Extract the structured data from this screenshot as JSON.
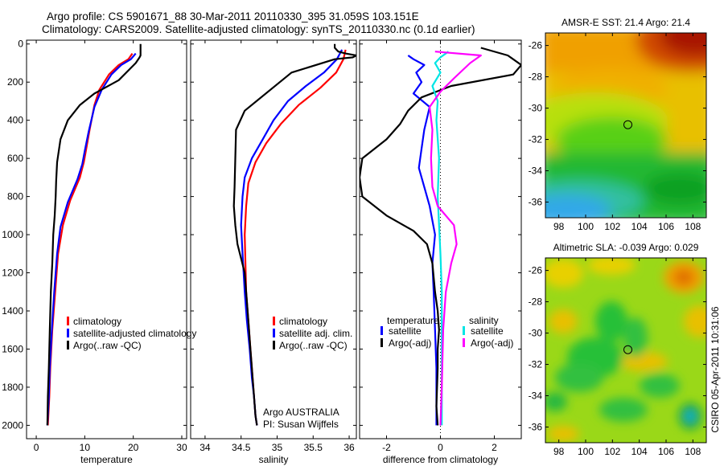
{
  "figure": {
    "title_line1": "Argo profile: CS 5901671_88 30-Mar-2011 20110330_395 31.059S 103.151E",
    "title_line2": "Climatology: CARS2009. Satellite-adjusted climatology: synTS_20110330.nc (0.1d earlier)",
    "credit": "CSIRO 05-Apr-2011 10:31:06"
  },
  "colors": {
    "climatology": "#ff0000",
    "satellite": "#0000ff",
    "argo": "#000000",
    "sal_satellite": "#00e5e5",
    "sal_argo": "#ff00ff"
  },
  "chart_data": [
    {
      "type": "line",
      "id": "temperature",
      "xlabel": "temperature",
      "ylabel": "",
      "xlim": [
        -2,
        31
      ],
      "ylim": [
        2070,
        -20
      ],
      "x_ticks": [
        0,
        10,
        20,
        30
      ],
      "y_ticks": [
        0,
        200,
        400,
        600,
        800,
        1000,
        1200,
        1400,
        1600,
        1800,
        2000
      ],
      "legend": [
        "climatology",
        "satellite-adjusted climatology",
        "Argo(..raw -QC)"
      ],
      "series": [
        {
          "name": "climatology",
          "color": "#ff0000",
          "x": [
            19.8,
            19,
            17,
            15,
            13,
            12,
            11,
            10.3,
            9.8,
            9,
            7,
            5.5,
            4.5,
            3.9,
            3.3,
            2.9,
            2.7,
            2.5,
            2.4
          ],
          "y": [
            50,
            80,
            110,
            160,
            240,
            320,
            450,
            550,
            620,
            700,
            820,
            950,
            1100,
            1300,
            1500,
            1700,
            1850,
            1950,
            2000
          ]
        },
        {
          "name": "satellite",
          "color": "#0000ff",
          "x": [
            20.5,
            19.5,
            17.5,
            15.5,
            13.5,
            12,
            10.8,
            10,
            9.5,
            8.5,
            6.5,
            5,
            4.3,
            3.7,
            3.2,
            2.8,
            2.6,
            2.4,
            2.3
          ],
          "y": [
            50,
            80,
            110,
            160,
            240,
            330,
            460,
            560,
            630,
            710,
            830,
            960,
            1100,
            1300,
            1500,
            1700,
            1850,
            1950,
            2000
          ]
        },
        {
          "name": "argo",
          "color": "#000000",
          "x": [
            21.5,
            21.5,
            21.5,
            21.3,
            20.5,
            17,
            12,
            9,
            6.5,
            5,
            4.3,
            4.1,
            4,
            3.8,
            3.5,
            3.3,
            3,
            2.8,
            2.6,
            2.4,
            2.3
          ],
          "y": [
            0,
            30,
            60,
            70,
            100,
            190,
            260,
            320,
            400,
            500,
            620,
            720,
            800,
            900,
            1000,
            1150,
            1300,
            1500,
            1700,
            1850,
            2000
          ]
        }
      ]
    },
    {
      "type": "line",
      "id": "salinity",
      "xlabel": "salinity",
      "ylabel": "",
      "xlim": [
        33.8,
        36.1
      ],
      "ylim": [
        2070,
        -20
      ],
      "x_ticks": [
        34,
        34.5,
        35,
        35.5,
        36
      ],
      "y_ticks": [],
      "legend": [
        "climatology",
        "satellite adj. clim.",
        "Argo(..raw -QC)"
      ],
      "annotations": [
        "Argo AUSTRALIA",
        "PI: Susan Wijffels"
      ],
      "series": [
        {
          "name": "climatology",
          "color": "#ff0000",
          "x": [
            35.95,
            35.92,
            35.82,
            35.6,
            35.3,
            35.05,
            34.85,
            34.7,
            34.6,
            34.57,
            34.55,
            34.56,
            34.57,
            34.6,
            34.63,
            34.66,
            34.68,
            34.7,
            34.72
          ],
          "y": [
            30,
            80,
            150,
            230,
            320,
            420,
            520,
            620,
            730,
            850,
            1000,
            1150,
            1300,
            1450,
            1600,
            1750,
            1850,
            1950,
            2000
          ]
        },
        {
          "name": "satellite",
          "color": "#0000ff",
          "x": [
            35.9,
            35.83,
            35.65,
            35.4,
            35.15,
            34.95,
            34.8,
            34.65,
            34.55,
            34.52,
            34.5,
            34.52,
            34.55,
            34.58,
            34.62,
            34.65,
            34.68,
            34.7,
            34.72
          ],
          "y": [
            30,
            80,
            150,
            220,
            300,
            400,
            500,
            600,
            700,
            800,
            950,
            1100,
            1300,
            1450,
            1600,
            1750,
            1850,
            1950,
            2000
          ]
        },
        {
          "name": "argo",
          "color": "#000000",
          "x": [
            35.8,
            35.8,
            35.85,
            35.95,
            36.1,
            36.05,
            35.8,
            35.2,
            34.55,
            34.43,
            34.42,
            34.41,
            34.4,
            34.42,
            34.45,
            34.55,
            34.57,
            34.6,
            34.63,
            34.67,
            34.7,
            34.72
          ],
          "y": [
            0,
            20,
            40,
            50,
            60,
            70,
            80,
            150,
            350,
            450,
            600,
            750,
            850,
            950,
            1050,
            1200,
            1300,
            1450,
            1600,
            1800,
            1950,
            2000
          ]
        }
      ]
    },
    {
      "type": "line",
      "id": "difference",
      "xlabel": "difference from climatology",
      "ylabel": "",
      "xlim": [
        -3,
        3
      ],
      "ylim": [
        2070,
        -20
      ],
      "x_ticks": [
        -2,
        0,
        2
      ],
      "y_ticks": [],
      "legend_titles": [
        "temperature",
        "salinity"
      ],
      "legend": [
        "satellite",
        "Argo(-adj)",
        "satellite",
        "Argo(-adj)"
      ],
      "series": [
        {
          "name": "temperature satellite",
          "color": "#0000ff",
          "x": [
            -1.2,
            -1,
            -0.6,
            -0.9,
            -0.7,
            -1,
            -0.4,
            -0.6,
            -0.7,
            -0.8,
            -0.6,
            -0.4,
            -0.2,
            -0.3,
            -0.25,
            -0.2,
            -0.15,
            -0.15,
            -0.15
          ],
          "y": [
            60,
            80,
            110,
            150,
            200,
            260,
            330,
            450,
            550,
            650,
            750,
            850,
            1000,
            1150,
            1300,
            1500,
            1700,
            1900,
            2000
          ]
        },
        {
          "name": "temperature argo",
          "color": "#000000",
          "x": [
            1.5,
            2.5,
            3,
            2.7,
            0.4,
            -0.7,
            -1.2,
            -1.5,
            -2,
            -2.9,
            -3,
            -2.9,
            -2,
            -1,
            -0.5,
            -0.3,
            -0.2,
            -0.1,
            -0.05,
            -0.1,
            -0.1,
            -0.15,
            -0.1
          ],
          "y": [
            20,
            60,
            110,
            160,
            220,
            280,
            350,
            420,
            500,
            600,
            700,
            800,
            900,
            980,
            1050,
            1150,
            1300,
            1400,
            1500,
            1600,
            1700,
            1900,
            2000
          ]
        },
        {
          "name": "salinity satellite",
          "color": "#00e5e5",
          "x": [
            0.3,
            0,
            -0.2,
            0,
            -0.3,
            -0.1,
            -0.15,
            -0.05,
            -0.1,
            -0.05,
            0,
            0.05,
            0.05,
            0.05,
            0.05,
            0.05,
            0.05
          ],
          "y": [
            40,
            70,
            100,
            150,
            220,
            300,
            400,
            600,
            800,
            950,
            1100,
            1300,
            1500,
            1650,
            1800,
            1950,
            2000
          ]
        },
        {
          "name": "salinity argo",
          "color": "#ff00ff",
          "x": [
            -0.2,
            1.5,
            1.1,
            0.5,
            0,
            -0.4,
            -0.3,
            -0.35,
            -0.3,
            -0.1,
            0.5,
            0.6,
            0.4,
            0.2,
            0.1,
            0.05,
            0
          ],
          "y": [
            40,
            60,
            100,
            180,
            250,
            330,
            450,
            600,
            750,
            850,
            950,
            1050,
            1150,
            1300,
            1500,
            1800,
            2000
          ]
        }
      ]
    },
    {
      "type": "heatmap",
      "id": "sst_map",
      "title": "AMSR-E SST: 21.4 Argo: 21.4",
      "xlim": [
        97,
        109
      ],
      "ylim": [
        -37,
        -25.2
      ],
      "x_ticks": [
        98,
        100,
        102,
        104,
        106,
        108
      ],
      "y_ticks": [
        -26,
        -28,
        -30,
        -32,
        -34,
        -36
      ],
      "marker": {
        "lon": 103.151,
        "lat": -31.059
      }
    },
    {
      "type": "heatmap",
      "id": "sla_map",
      "title": "Altimetric SLA: -0.039 Argo: 0.029",
      "xlim": [
        97,
        109
      ],
      "ylim": [
        -37,
        -25.2
      ],
      "x_ticks": [
        98,
        100,
        102,
        104,
        106,
        108
      ],
      "y_ticks": [
        -26,
        -28,
        -30,
        -32,
        -34,
        -36
      ],
      "marker": {
        "lon": 103.151,
        "lat": -31.059
      }
    }
  ]
}
